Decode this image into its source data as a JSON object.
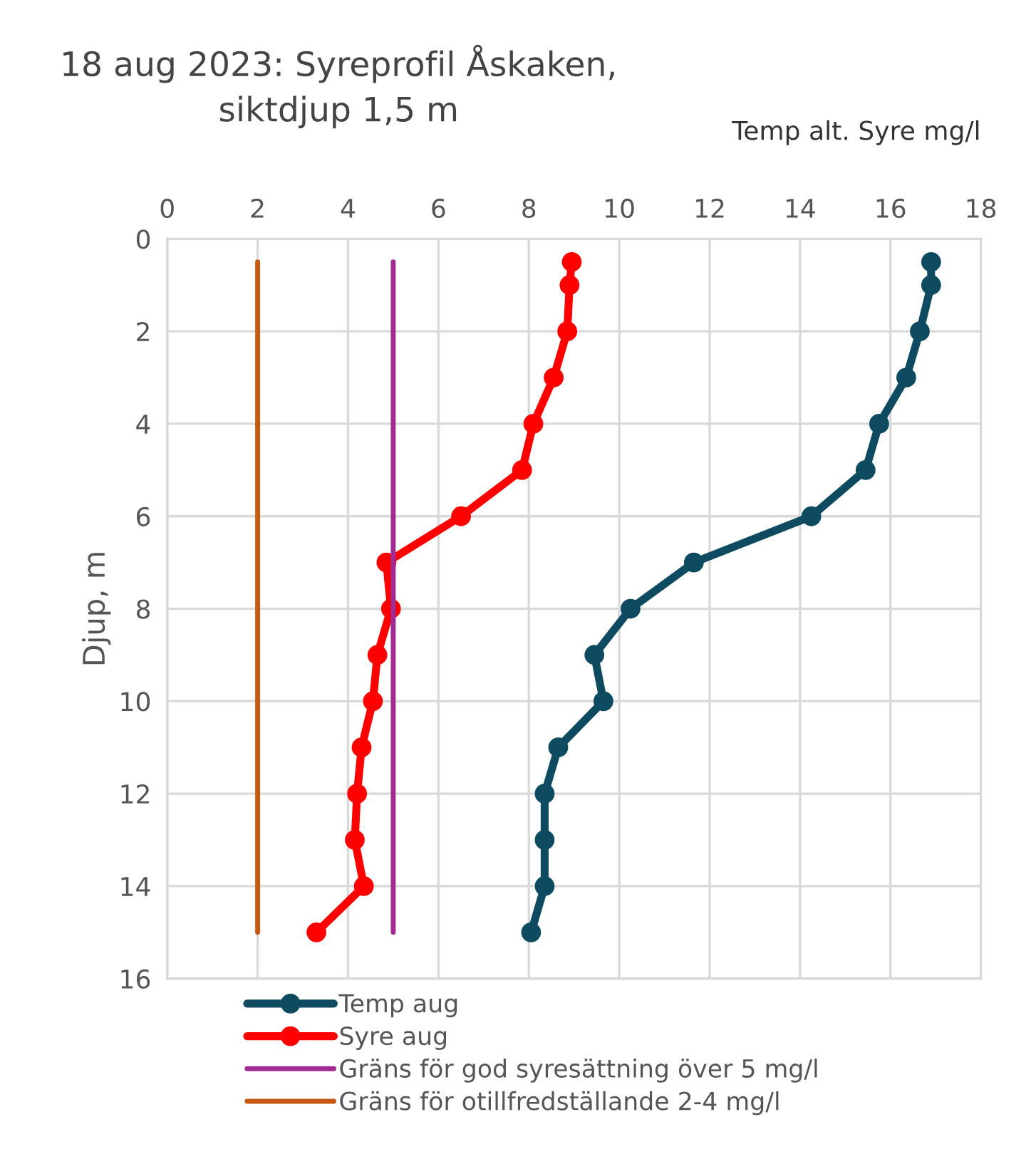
{
  "chart_data": {
    "type": "line",
    "title": "18 aug 2023: Syreprofil Åskaken,\nsiktdjup 1,5 m",
    "xlabel": "Temp alt. Syre mg/l",
    "ylabel": "Djup, m",
    "xlim": [
      0,
      18
    ],
    "xticks": [
      0,
      2,
      4,
      6,
      8,
      10,
      12,
      14,
      16,
      18
    ],
    "ylim": [
      16,
      0
    ],
    "yticks": [
      0,
      2,
      4,
      6,
      8,
      10,
      12,
      14,
      16
    ],
    "grid": true,
    "legend": "bottom",
    "marker": "circle",
    "line_style": "solid",
    "series": [
      {
        "name": "Temp aug",
        "color": "#0e4a60",
        "x": [
          16.9,
          16.9,
          16.65,
          16.35,
          15.75,
          15.45,
          14.25,
          11.65,
          10.25,
          9.45,
          9.65,
          8.65,
          8.35,
          8.35,
          8.35,
          8.05
        ],
        "values": [
          0.5,
          1,
          2,
          3,
          4,
          5,
          6,
          7,
          8,
          9,
          10,
          11,
          12,
          13,
          14,
          15
        ]
      },
      {
        "name": "Syre aug",
        "color": "#ff0000",
        "x": [
          8.95,
          8.9,
          8.85,
          8.55,
          8.1,
          7.85,
          6.5,
          4.85,
          4.95,
          4.65,
          4.55,
          4.3,
          4.2,
          4.15,
          4.35,
          3.3
        ],
        "values": [
          0.5,
          1,
          2,
          3,
          4,
          5,
          6,
          7,
          8,
          9,
          10,
          11,
          12,
          13,
          14,
          15
        ]
      },
      {
        "name": "Gräns för god syresättning över 5 mg/l",
        "color": "#a02b93",
        "marker": "none",
        "x": [
          5,
          5
        ],
        "values": [
          0.5,
          15
        ]
      },
      {
        "name": "Gräns för otillfredställande 2-4 mg/l",
        "color": "#c55a11",
        "marker": "none",
        "x": [
          2,
          2
        ],
        "values": [
          0.5,
          15
        ]
      }
    ]
  }
}
